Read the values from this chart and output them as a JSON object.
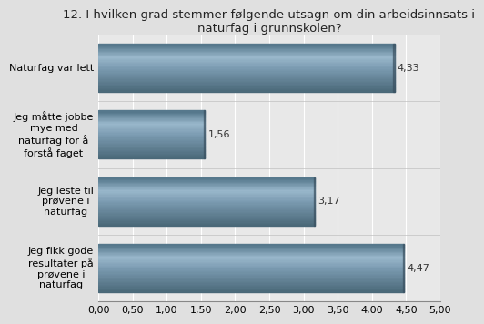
{
  "title": "12. I hvilken grad stemmer følgende utsagn om din arbeidsinnsats i\nnaturfag i grunnskolen?",
  "categories": [
    "Jeg fikk gode\nresultater på\nprøvene i\nnaturfag",
    "Jeg leste til\nprøvene i\nnaturfag",
    "Jeg måtte jobbe\nmye med\nnaturfag for å\nforstå faget",
    "Naturfag var lett"
  ],
  "values": [
    4.47,
    3.17,
    1.56,
    4.33
  ],
  "bar_color_dark": "#4a6878",
  "bar_color_mid": "#6a8fa0",
  "bar_color_light": "#8ab0c0",
  "bar_color_top": "#7090a0",
  "background_color": "#e0e0e0",
  "plot_bg_color": "#e8e8e8",
  "grid_color": "#ffffff",
  "xlim": [
    0,
    5.0
  ],
  "xticks": [
    0.0,
    0.5,
    1.0,
    1.5,
    2.0,
    2.5,
    3.0,
    3.5,
    4.0,
    4.5,
    5.0
  ],
  "xtick_labels": [
    "0,00",
    "0,50",
    "1,00",
    "1,50",
    "2,00",
    "2,50",
    "3,00",
    "3,50",
    "4,00",
    "4,50",
    "5,00"
  ],
  "title_fontsize": 9.5,
  "label_fontsize": 8,
  "value_fontsize": 8,
  "bar_height": 0.72
}
